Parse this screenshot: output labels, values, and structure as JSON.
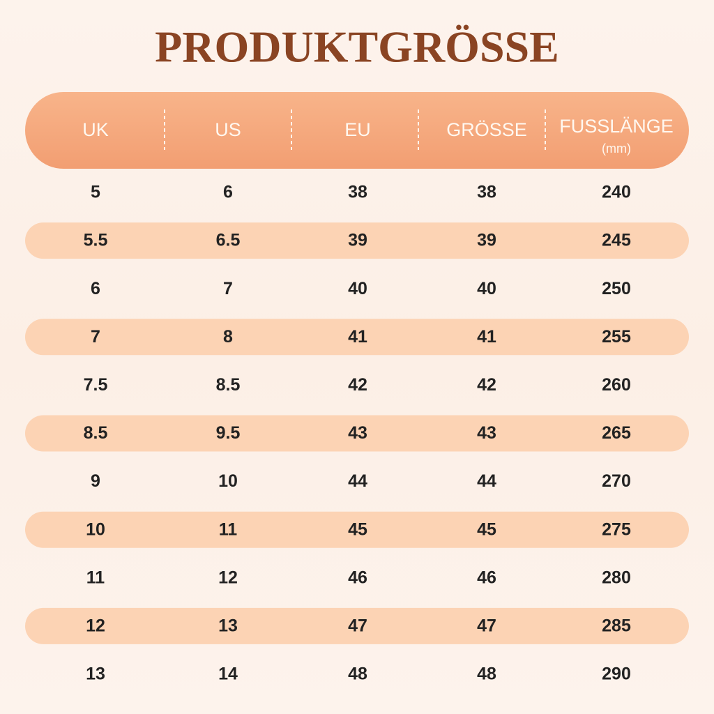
{
  "title": "PRODUKTGRÖSSE",
  "table": {
    "header": [
      {
        "label": "UK"
      },
      {
        "label": "US"
      },
      {
        "label": "EU"
      },
      {
        "label": "GRÖSSE"
      },
      {
        "label": "FUSSLÄNGE",
        "sublabel": "(mm)"
      }
    ],
    "rows": [
      [
        "5",
        "6",
        "38",
        "38",
        "240"
      ],
      [
        "5.5",
        "6.5",
        "39",
        "39",
        "245"
      ],
      [
        "6",
        "7",
        "40",
        "40",
        "250"
      ],
      [
        "7",
        "8",
        "41",
        "41",
        "255"
      ],
      [
        "7.5",
        "8.5",
        "42",
        "42",
        "260"
      ],
      [
        "8.5",
        "9.5",
        "43",
        "43",
        "265"
      ],
      [
        "9",
        "10",
        "44",
        "44",
        "270"
      ],
      [
        "10",
        "11",
        "45",
        "45",
        "275"
      ],
      [
        "11",
        "12",
        "46",
        "46",
        "280"
      ],
      [
        "12",
        "13",
        "47",
        "47",
        "285"
      ],
      [
        "13",
        "14",
        "48",
        "48",
        "290"
      ]
    ]
  }
}
